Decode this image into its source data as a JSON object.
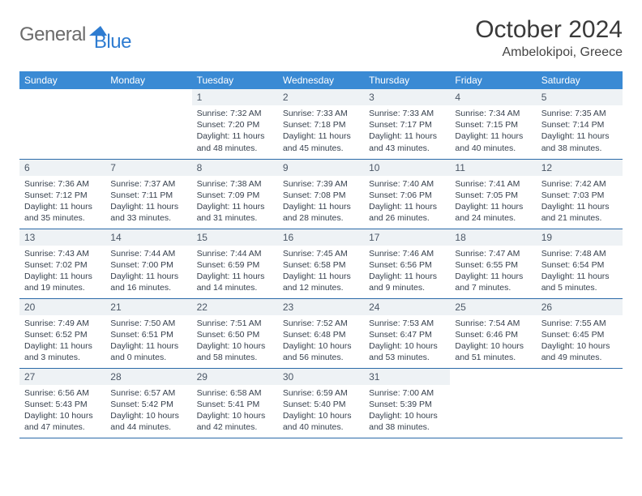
{
  "brand": {
    "word1": "General",
    "word2": "Blue",
    "arrow_color": "#2e7cd1"
  },
  "title": "October 2024",
  "location": "Ambelokipoi, Greece",
  "colors": {
    "header_bg": "#3a8ad4",
    "header_text": "#ffffff",
    "daynum_bg": "#eef2f5",
    "border": "#2b6aa8"
  },
  "dayHeaders": [
    "Sunday",
    "Monday",
    "Tuesday",
    "Wednesday",
    "Thursday",
    "Friday",
    "Saturday"
  ],
  "weeks": [
    [
      null,
      null,
      {
        "n": "1",
        "a": "Sunrise: 7:32 AM",
        "b": "Sunset: 7:20 PM",
        "c": "Daylight: 11 hours",
        "d": "and 48 minutes."
      },
      {
        "n": "2",
        "a": "Sunrise: 7:33 AM",
        "b": "Sunset: 7:18 PM",
        "c": "Daylight: 11 hours",
        "d": "and 45 minutes."
      },
      {
        "n": "3",
        "a": "Sunrise: 7:33 AM",
        "b": "Sunset: 7:17 PM",
        "c": "Daylight: 11 hours",
        "d": "and 43 minutes."
      },
      {
        "n": "4",
        "a": "Sunrise: 7:34 AM",
        "b": "Sunset: 7:15 PM",
        "c": "Daylight: 11 hours",
        "d": "and 40 minutes."
      },
      {
        "n": "5",
        "a": "Sunrise: 7:35 AM",
        "b": "Sunset: 7:14 PM",
        "c": "Daylight: 11 hours",
        "d": "and 38 minutes."
      }
    ],
    [
      {
        "n": "6",
        "a": "Sunrise: 7:36 AM",
        "b": "Sunset: 7:12 PM",
        "c": "Daylight: 11 hours",
        "d": "and 35 minutes."
      },
      {
        "n": "7",
        "a": "Sunrise: 7:37 AM",
        "b": "Sunset: 7:11 PM",
        "c": "Daylight: 11 hours",
        "d": "and 33 minutes."
      },
      {
        "n": "8",
        "a": "Sunrise: 7:38 AM",
        "b": "Sunset: 7:09 PM",
        "c": "Daylight: 11 hours",
        "d": "and 31 minutes."
      },
      {
        "n": "9",
        "a": "Sunrise: 7:39 AM",
        "b": "Sunset: 7:08 PM",
        "c": "Daylight: 11 hours",
        "d": "and 28 minutes."
      },
      {
        "n": "10",
        "a": "Sunrise: 7:40 AM",
        "b": "Sunset: 7:06 PM",
        "c": "Daylight: 11 hours",
        "d": "and 26 minutes."
      },
      {
        "n": "11",
        "a": "Sunrise: 7:41 AM",
        "b": "Sunset: 7:05 PM",
        "c": "Daylight: 11 hours",
        "d": "and 24 minutes."
      },
      {
        "n": "12",
        "a": "Sunrise: 7:42 AM",
        "b": "Sunset: 7:03 PM",
        "c": "Daylight: 11 hours",
        "d": "and 21 minutes."
      }
    ],
    [
      {
        "n": "13",
        "a": "Sunrise: 7:43 AM",
        "b": "Sunset: 7:02 PM",
        "c": "Daylight: 11 hours",
        "d": "and 19 minutes."
      },
      {
        "n": "14",
        "a": "Sunrise: 7:44 AM",
        "b": "Sunset: 7:00 PM",
        "c": "Daylight: 11 hours",
        "d": "and 16 minutes."
      },
      {
        "n": "15",
        "a": "Sunrise: 7:44 AM",
        "b": "Sunset: 6:59 PM",
        "c": "Daylight: 11 hours",
        "d": "and 14 minutes."
      },
      {
        "n": "16",
        "a": "Sunrise: 7:45 AM",
        "b": "Sunset: 6:58 PM",
        "c": "Daylight: 11 hours",
        "d": "and 12 minutes."
      },
      {
        "n": "17",
        "a": "Sunrise: 7:46 AM",
        "b": "Sunset: 6:56 PM",
        "c": "Daylight: 11 hours",
        "d": "and 9 minutes."
      },
      {
        "n": "18",
        "a": "Sunrise: 7:47 AM",
        "b": "Sunset: 6:55 PM",
        "c": "Daylight: 11 hours",
        "d": "and 7 minutes."
      },
      {
        "n": "19",
        "a": "Sunrise: 7:48 AM",
        "b": "Sunset: 6:54 PM",
        "c": "Daylight: 11 hours",
        "d": "and 5 minutes."
      }
    ],
    [
      {
        "n": "20",
        "a": "Sunrise: 7:49 AM",
        "b": "Sunset: 6:52 PM",
        "c": "Daylight: 11 hours",
        "d": "and 3 minutes."
      },
      {
        "n": "21",
        "a": "Sunrise: 7:50 AM",
        "b": "Sunset: 6:51 PM",
        "c": "Daylight: 11 hours",
        "d": "and 0 minutes."
      },
      {
        "n": "22",
        "a": "Sunrise: 7:51 AM",
        "b": "Sunset: 6:50 PM",
        "c": "Daylight: 10 hours",
        "d": "and 58 minutes."
      },
      {
        "n": "23",
        "a": "Sunrise: 7:52 AM",
        "b": "Sunset: 6:48 PM",
        "c": "Daylight: 10 hours",
        "d": "and 56 minutes."
      },
      {
        "n": "24",
        "a": "Sunrise: 7:53 AM",
        "b": "Sunset: 6:47 PM",
        "c": "Daylight: 10 hours",
        "d": "and 53 minutes."
      },
      {
        "n": "25",
        "a": "Sunrise: 7:54 AM",
        "b": "Sunset: 6:46 PM",
        "c": "Daylight: 10 hours",
        "d": "and 51 minutes."
      },
      {
        "n": "26",
        "a": "Sunrise: 7:55 AM",
        "b": "Sunset: 6:45 PM",
        "c": "Daylight: 10 hours",
        "d": "and 49 minutes."
      }
    ],
    [
      {
        "n": "27",
        "a": "Sunrise: 6:56 AM",
        "b": "Sunset: 5:43 PM",
        "c": "Daylight: 10 hours",
        "d": "and 47 minutes."
      },
      {
        "n": "28",
        "a": "Sunrise: 6:57 AM",
        "b": "Sunset: 5:42 PM",
        "c": "Daylight: 10 hours",
        "d": "and 44 minutes."
      },
      {
        "n": "29",
        "a": "Sunrise: 6:58 AM",
        "b": "Sunset: 5:41 PM",
        "c": "Daylight: 10 hours",
        "d": "and 42 minutes."
      },
      {
        "n": "30",
        "a": "Sunrise: 6:59 AM",
        "b": "Sunset: 5:40 PM",
        "c": "Daylight: 10 hours",
        "d": "and 40 minutes."
      },
      {
        "n": "31",
        "a": "Sunrise: 7:00 AM",
        "b": "Sunset: 5:39 PM",
        "c": "Daylight: 10 hours",
        "d": "and 38 minutes."
      },
      null,
      null
    ]
  ]
}
